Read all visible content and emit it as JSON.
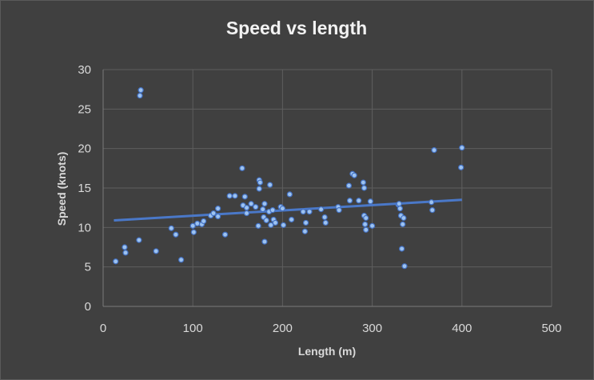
{
  "chart_data": {
    "type": "scatter",
    "title": "Speed  vs length",
    "xlabel": "Length (m)",
    "ylabel": "Speed (knots)",
    "xlim": [
      0,
      500
    ],
    "ylim": [
      0,
      30
    ],
    "xticks": [
      0,
      100,
      200,
      300,
      400,
      500
    ],
    "yticks": [
      0,
      5,
      10,
      15,
      20,
      25,
      30
    ],
    "grid": true,
    "legend": "none",
    "point_color": "#9dc3f0",
    "trendline_color": "#4472c4",
    "trendline": {
      "type": "linear",
      "x": [
        12,
        400
      ],
      "y": [
        10.9,
        13.5
      ]
    },
    "series": [
      {
        "points": [
          [
            14,
            5.7
          ],
          [
            24,
            7.5
          ],
          [
            25,
            6.8
          ],
          [
            40,
            8.4
          ],
          [
            41,
            26.7
          ],
          [
            42,
            27.4
          ],
          [
            59,
            7.0
          ],
          [
            76,
            9.9
          ],
          [
            81,
            9.1
          ],
          [
            87,
            5.9
          ],
          [
            100,
            10.2
          ],
          [
            101,
            9.4
          ],
          [
            105,
            10.5
          ],
          [
            110,
            10.4
          ],
          [
            112,
            10.8
          ],
          [
            120,
            11.5
          ],
          [
            123,
            11.8
          ],
          [
            128,
            11.4
          ],
          [
            128,
            12.4
          ],
          [
            136,
            9.1
          ],
          [
            141,
            14.0
          ],
          [
            147,
            14.0
          ],
          [
            155,
            17.5
          ],
          [
            156,
            12.8
          ],
          [
            158,
            13.9
          ],
          [
            160,
            12.5
          ],
          [
            160,
            11.8
          ],
          [
            165,
            13.0
          ],
          [
            170,
            12.6
          ],
          [
            173,
            10.2
          ],
          [
            174,
            16.0
          ],
          [
            174,
            14.9
          ],
          [
            175,
            15.7
          ],
          [
            178,
            12.3
          ],
          [
            179,
            11.3
          ],
          [
            180,
            13.0
          ],
          [
            180,
            8.2
          ],
          [
            182,
            10.9
          ],
          [
            185,
            12.0
          ],
          [
            186,
            15.4
          ],
          [
            187,
            10.3
          ],
          [
            189,
            12.2
          ],
          [
            190,
            11.0
          ],
          [
            192,
            10.6
          ],
          [
            198,
            12.6
          ],
          [
            200,
            12.4
          ],
          [
            201,
            10.3
          ],
          [
            208,
            14.2
          ],
          [
            210,
            11.0
          ],
          [
            223,
            12.0
          ],
          [
            225,
            9.5
          ],
          [
            226,
            10.6
          ],
          [
            230,
            12.0
          ],
          [
            243,
            12.3
          ],
          [
            247,
            11.3
          ],
          [
            248,
            10.6
          ],
          [
            262,
            12.6
          ],
          [
            263,
            12.2
          ],
          [
            274,
            15.3
          ],
          [
            275,
            13.4
          ],
          [
            278,
            16.8
          ],
          [
            280,
            16.6
          ],
          [
            285,
            13.4
          ],
          [
            290,
            15.7
          ],
          [
            291,
            15.0
          ],
          [
            291,
            11.5
          ],
          [
            292,
            10.4
          ],
          [
            293,
            11.2
          ],
          [
            293,
            9.7
          ],
          [
            298,
            13.3
          ],
          [
            300,
            10.2
          ],
          [
            329,
            12.9
          ],
          [
            330,
            13.0
          ],
          [
            331,
            12.4
          ],
          [
            332,
            11.5
          ],
          [
            333,
            7.3
          ],
          [
            334,
            10.4
          ],
          [
            335,
            11.2
          ],
          [
            336,
            5.1
          ],
          [
            366,
            13.2
          ],
          [
            367,
            12.2
          ],
          [
            369,
            19.8
          ],
          [
            399,
            17.6
          ],
          [
            400,
            20.1
          ]
        ]
      }
    ]
  }
}
